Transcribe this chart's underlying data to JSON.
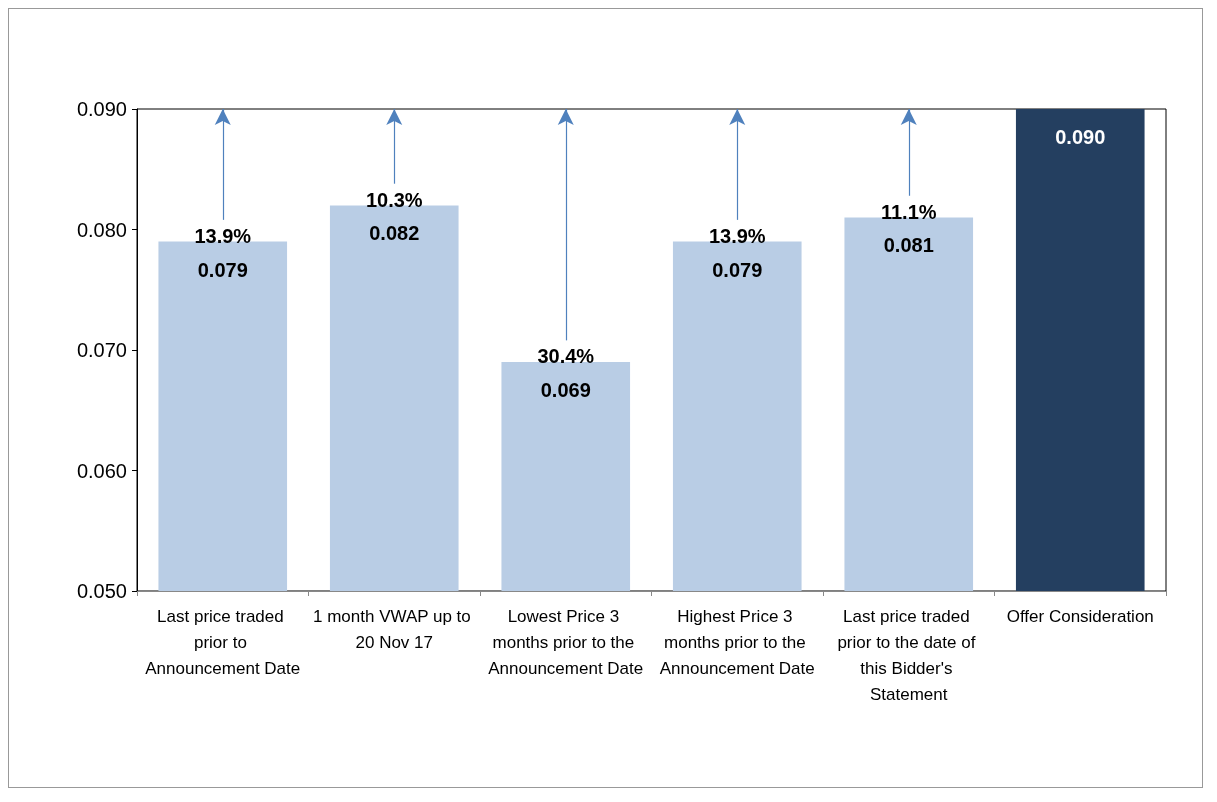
{
  "chart_data": {
    "type": "bar",
    "categories": [
      "Last price traded prior to Announcement Date",
      "1 month VWAP up to 20 Nov 17",
      "Lowest Price 3 months prior to the Announcement Date",
      "Highest Price 3 months prior to the Announcement Date",
      "Last price traded prior to the date of this Bidder's Statement",
      "Offer Consideration"
    ],
    "values": [
      0.079,
      0.082,
      0.069,
      0.079,
      0.081,
      0.09
    ],
    "value_labels": [
      "0.079",
      "0.082",
      "0.069",
      "0.079",
      "0.081",
      "0.090"
    ],
    "colors": [
      "#b9cde5",
      "#b9cde5",
      "#b9cde5",
      "#b9cde5",
      "#b9cde5",
      "#243f60"
    ],
    "ylim": [
      0.05,
      0.09
    ],
    "yticks": [
      {
        "value": 0.05,
        "label": "0.050"
      },
      {
        "value": 0.06,
        "label": "0.060"
      },
      {
        "value": 0.07,
        "label": "0.070"
      },
      {
        "value": 0.08,
        "label": "0.080"
      },
      {
        "value": 0.09,
        "label": "0.090"
      }
    ],
    "grid": false,
    "annotations": [
      "13.9%",
      "10.3%",
      "30.4%",
      "13.9%",
      "11.1%"
    ]
  }
}
